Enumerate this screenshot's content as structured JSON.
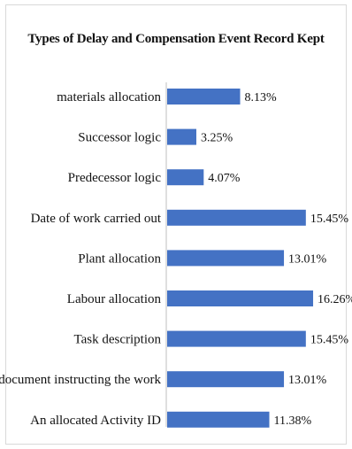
{
  "chart_data": {
    "type": "bar",
    "orientation": "horizontal",
    "title": "Types of Delay and Compensation Event Record Kept",
    "categories": [
      "materials allocation",
      "Successor logic",
      "Predecessor logic",
      "Date of work carried out",
      "Plant allocation",
      "Labour allocation",
      "Task description",
      "Contract document instructing the work",
      "An allocated Activity ID"
    ],
    "values": [
      8.13,
      3.25,
      4.07,
      15.45,
      13.01,
      16.26,
      15.45,
      13.01,
      11.38
    ],
    "value_labels": [
      "8.13%",
      "3.25%",
      "4.07%",
      "15.45%",
      "13.01%",
      "16.26%",
      "15.45%",
      "13.01%",
      "11.38%"
    ],
    "xlabel": "",
    "ylabel": "",
    "grid": false,
    "legend": "none",
    "bar_color": "#4472c4"
  }
}
